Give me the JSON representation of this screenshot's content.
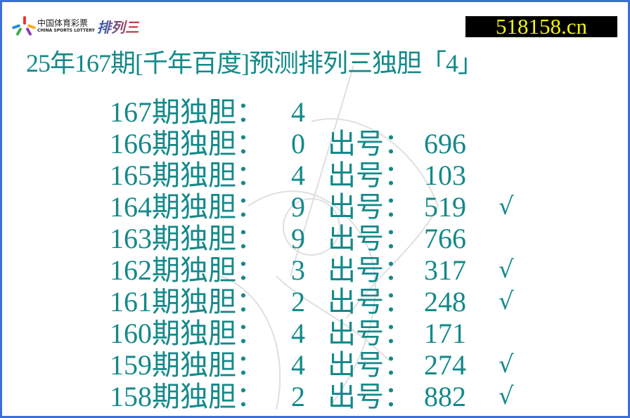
{
  "logo": {
    "cn": "中国体育彩票",
    "en": "CHINA SPORTS LOTTERY",
    "product": "排列三"
  },
  "site": "518158.cn",
  "title": "25年167期[千年百度]预测排列三独胆「4」",
  "labels": {
    "issue_suffix": "期独胆：",
    "draw": "出号：",
    "hit_mark": "√"
  },
  "rows": [
    {
      "issue": "167",
      "pick": "4",
      "draw": "",
      "hit": false
    },
    {
      "issue": "166",
      "pick": "0",
      "draw": "696",
      "hit": false
    },
    {
      "issue": "165",
      "pick": "4",
      "draw": "103",
      "hit": false
    },
    {
      "issue": "164",
      "pick": "9",
      "draw": "519",
      "hit": true
    },
    {
      "issue": "163",
      "pick": "9",
      "draw": "766",
      "hit": false
    },
    {
      "issue": "162",
      "pick": "3",
      "draw": "317",
      "hit": true
    },
    {
      "issue": "161",
      "pick": "2",
      "draw": "248",
      "hit": true
    },
    {
      "issue": "160",
      "pick": "4",
      "draw": "171",
      "hit": false
    },
    {
      "issue": "159",
      "pick": "4",
      "draw": "274",
      "hit": true
    },
    {
      "issue": "158",
      "pick": "2",
      "draw": "882",
      "hit": true
    }
  ],
  "colors": {
    "text": "#14898a",
    "border": "#3b6fd6",
    "site_bg": "#000000",
    "site_text": "#f5f50a"
  }
}
